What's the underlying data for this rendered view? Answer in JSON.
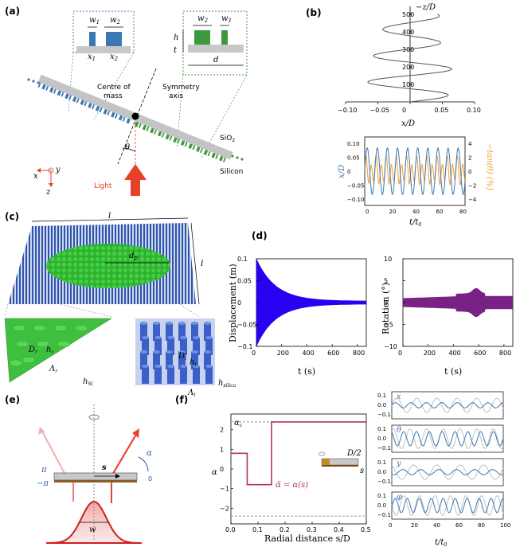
{
  "panels": {
    "a": {
      "label": "(a)",
      "w1": "w",
      "w1_sub": "1",
      "w2": "w",
      "w2_sub": "2",
      "x1": "x",
      "x1_sub": "1",
      "x2": "x",
      "x2_sub": "2",
      "h": "h",
      "t": "t",
      "d": "d",
      "centre_line1": "Centre of",
      "centre_line2": "mass",
      "sym_line1": "Symmetry",
      "sym_line2": "axis",
      "sio2": "SiO",
      "sio2_sub": "2",
      "silicon": "Silicon",
      "theta": "θ",
      "light": "Light",
      "axis_x": "x",
      "axis_y": "y",
      "axis_z": "z",
      "colors": {
        "blue": "#3c78b4",
        "green": "#3c9a3c",
        "red": "#e8412a",
        "gray": "#b8b8b8"
      }
    },
    "b": {
      "label": "(b)",
      "top_ylabel": "−z/D",
      "top_xlabel": "x/D",
      "top_yticks": [
        "100",
        "200",
        "300",
        "400",
        "500"
      ],
      "top_xticks": [
        "−0.10",
        "−0.05",
        "0",
        "0.05",
        "0.10"
      ],
      "bot_ylabel_left": "x/D",
      "bot_ylabel_right": "−tan(θ) (%)",
      "bot_xlabel": "t/t",
      "bot_xlabel_sub": "0",
      "bot_yticks_left": [
        "0.10",
        "0.05",
        "0",
        "−0.05",
        "−0.10"
      ],
      "bot_yticks_right": [
        "4",
        "2",
        "0",
        "−2",
        "−4"
      ],
      "bot_xticks": [
        "0",
        "20",
        "40",
        "60",
        "80"
      ]
    },
    "c": {
      "label": "(c)",
      "l_top": "l",
      "l_right": "l",
      "dp": "d",
      "dp_sub": "p",
      "dr": "D",
      "dr_sub": "r",
      "hr": "h",
      "hr_sub": "r",
      "lambda_r": "Λ",
      "lambda_r_sub": "r",
      "hsi": "h",
      "hsi_sub": "Si",
      "dt": "D",
      "dt_sub": "t",
      "ht": "h",
      "ht_sub": "t",
      "lambda_t": "Λ",
      "lambda_t_sub": "t",
      "hsilica": "h",
      "hsilica_sub": "silica"
    },
    "d": {
      "label": "(d)",
      "left_ylabel": "Displacement (m)",
      "left_yticks": [
        "0.1",
        "0.05",
        "0",
        "−0.05",
        "−0.1"
      ],
      "xticks": [
        "0",
        "200",
        "400",
        "600",
        "800"
      ],
      "xlabel": "t (s)",
      "right_ylabel": "Rotation (°)",
      "right_yticks": [
        "10",
        "5",
        "0",
        "−5",
        "−10"
      ],
      "colors": {
        "displacement": "#2a00f0",
        "rotation": "#7a2185"
      }
    },
    "e": {
      "label": "(e)",
      "pi": "π",
      "minus_pi": "−π",
      "s": "s",
      "alpha": "α",
      "zero": "0",
      "w": "w"
    },
    "f": {
      "label": "(f)",
      "ylabel": "α",
      "xlabel": "Radial distance s/D",
      "alpha_c": "α",
      "alpha_c_sub": "c",
      "curve_label": "α̃ = α(s)",
      "inset_d2": "D/2",
      "inset_s": "s",
      "yticks": [
        "2",
        "1",
        "0",
        "−1",
        "−2"
      ],
      "xticks": [
        "0.0",
        "0.1",
        "0.2",
        "0.3",
        "0.4",
        "0.5"
      ],
      "small_labels": [
        "x",
        "θ",
        "y",
        "φ"
      ],
      "small_yticks": [
        "0.1",
        "0.0",
        "−0.1"
      ],
      "small_xticks": [
        "0",
        "20",
        "40",
        "60",
        "80",
        "100"
      ],
      "small_xlabel": "t/t",
      "small_xlabel_sub": "0"
    }
  }
}
